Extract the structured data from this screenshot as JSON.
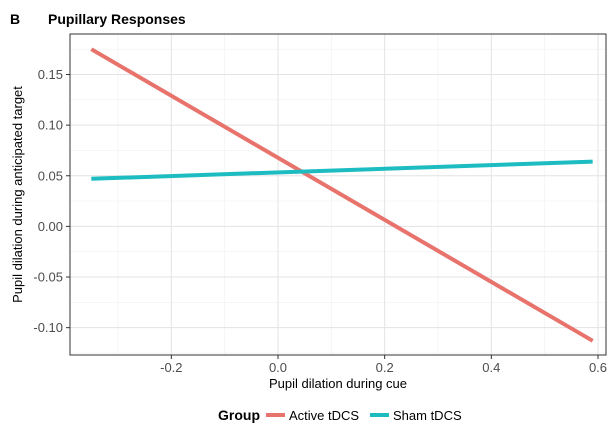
{
  "chart_data": {
    "type": "line",
    "panel_letter": "B",
    "title": "Pupillary Responses",
    "xlabel": "Pupil dilation during cue",
    "ylabel": "Pupil dilation during anticipated target",
    "xlim": [
      -0.39,
      0.615
    ],
    "ylim": [
      -0.127,
      0.19
    ],
    "x_ticks": [
      -0.2,
      0.0,
      0.2,
      0.4,
      0.6
    ],
    "x_tick_labels": [
      "-0.2",
      "0.0",
      "0.2",
      "0.4",
      "0.6"
    ],
    "y_ticks": [
      -0.1,
      -0.05,
      0.0,
      0.05,
      0.1,
      0.15
    ],
    "y_tick_labels": [
      "-0.10",
      "-0.05",
      "0.00",
      "0.05",
      "0.10",
      "0.15"
    ],
    "grid": true,
    "legend": {
      "title": "Group",
      "placement": "bottom"
    },
    "series": [
      {
        "name": "Active tDCS",
        "color": "#E8736C",
        "x": [
          -0.35,
          0.59
        ],
        "y": [
          0.175,
          -0.113
        ]
      },
      {
        "name": "Sham tDCS",
        "color": "#1DBCC1",
        "x": [
          -0.35,
          0.59
        ],
        "y": [
          0.047,
          0.064
        ]
      }
    ]
  }
}
